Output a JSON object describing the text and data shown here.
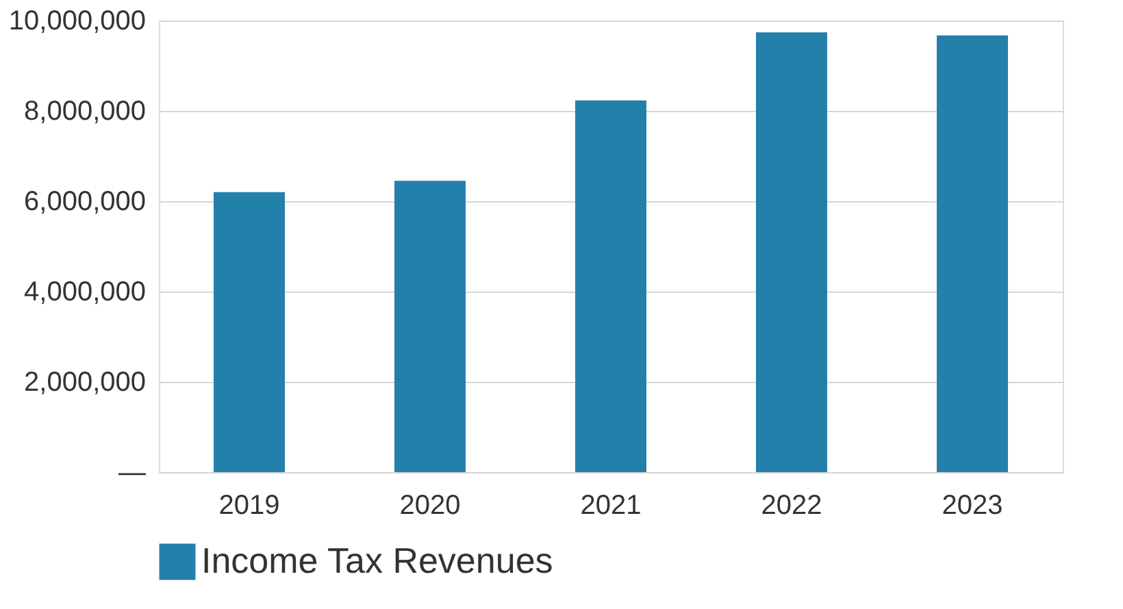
{
  "chart_data": {
    "type": "bar",
    "categories": [
      "2019",
      "2020",
      "2021",
      "2022",
      "2023"
    ],
    "series": [
      {
        "name": "Income Tax Revenues",
        "color": "#2380aa",
        "values": [
          6200000,
          6450000,
          8230000,
          9740000,
          9670000
        ]
      }
    ],
    "ylim": [
      0,
      10000000
    ],
    "yticks": [
      {
        "value": 0,
        "label": "—"
      },
      {
        "value": 2000000,
        "label": "2,000,000"
      },
      {
        "value": 4000000,
        "label": "4,000,000"
      },
      {
        "value": 6000000,
        "label": "6,000,000"
      },
      {
        "value": 8000000,
        "label": "8,000,000"
      },
      {
        "value": 10000000,
        "label": "10,000,000"
      }
    ],
    "grid": "y",
    "legend": "bottom"
  }
}
